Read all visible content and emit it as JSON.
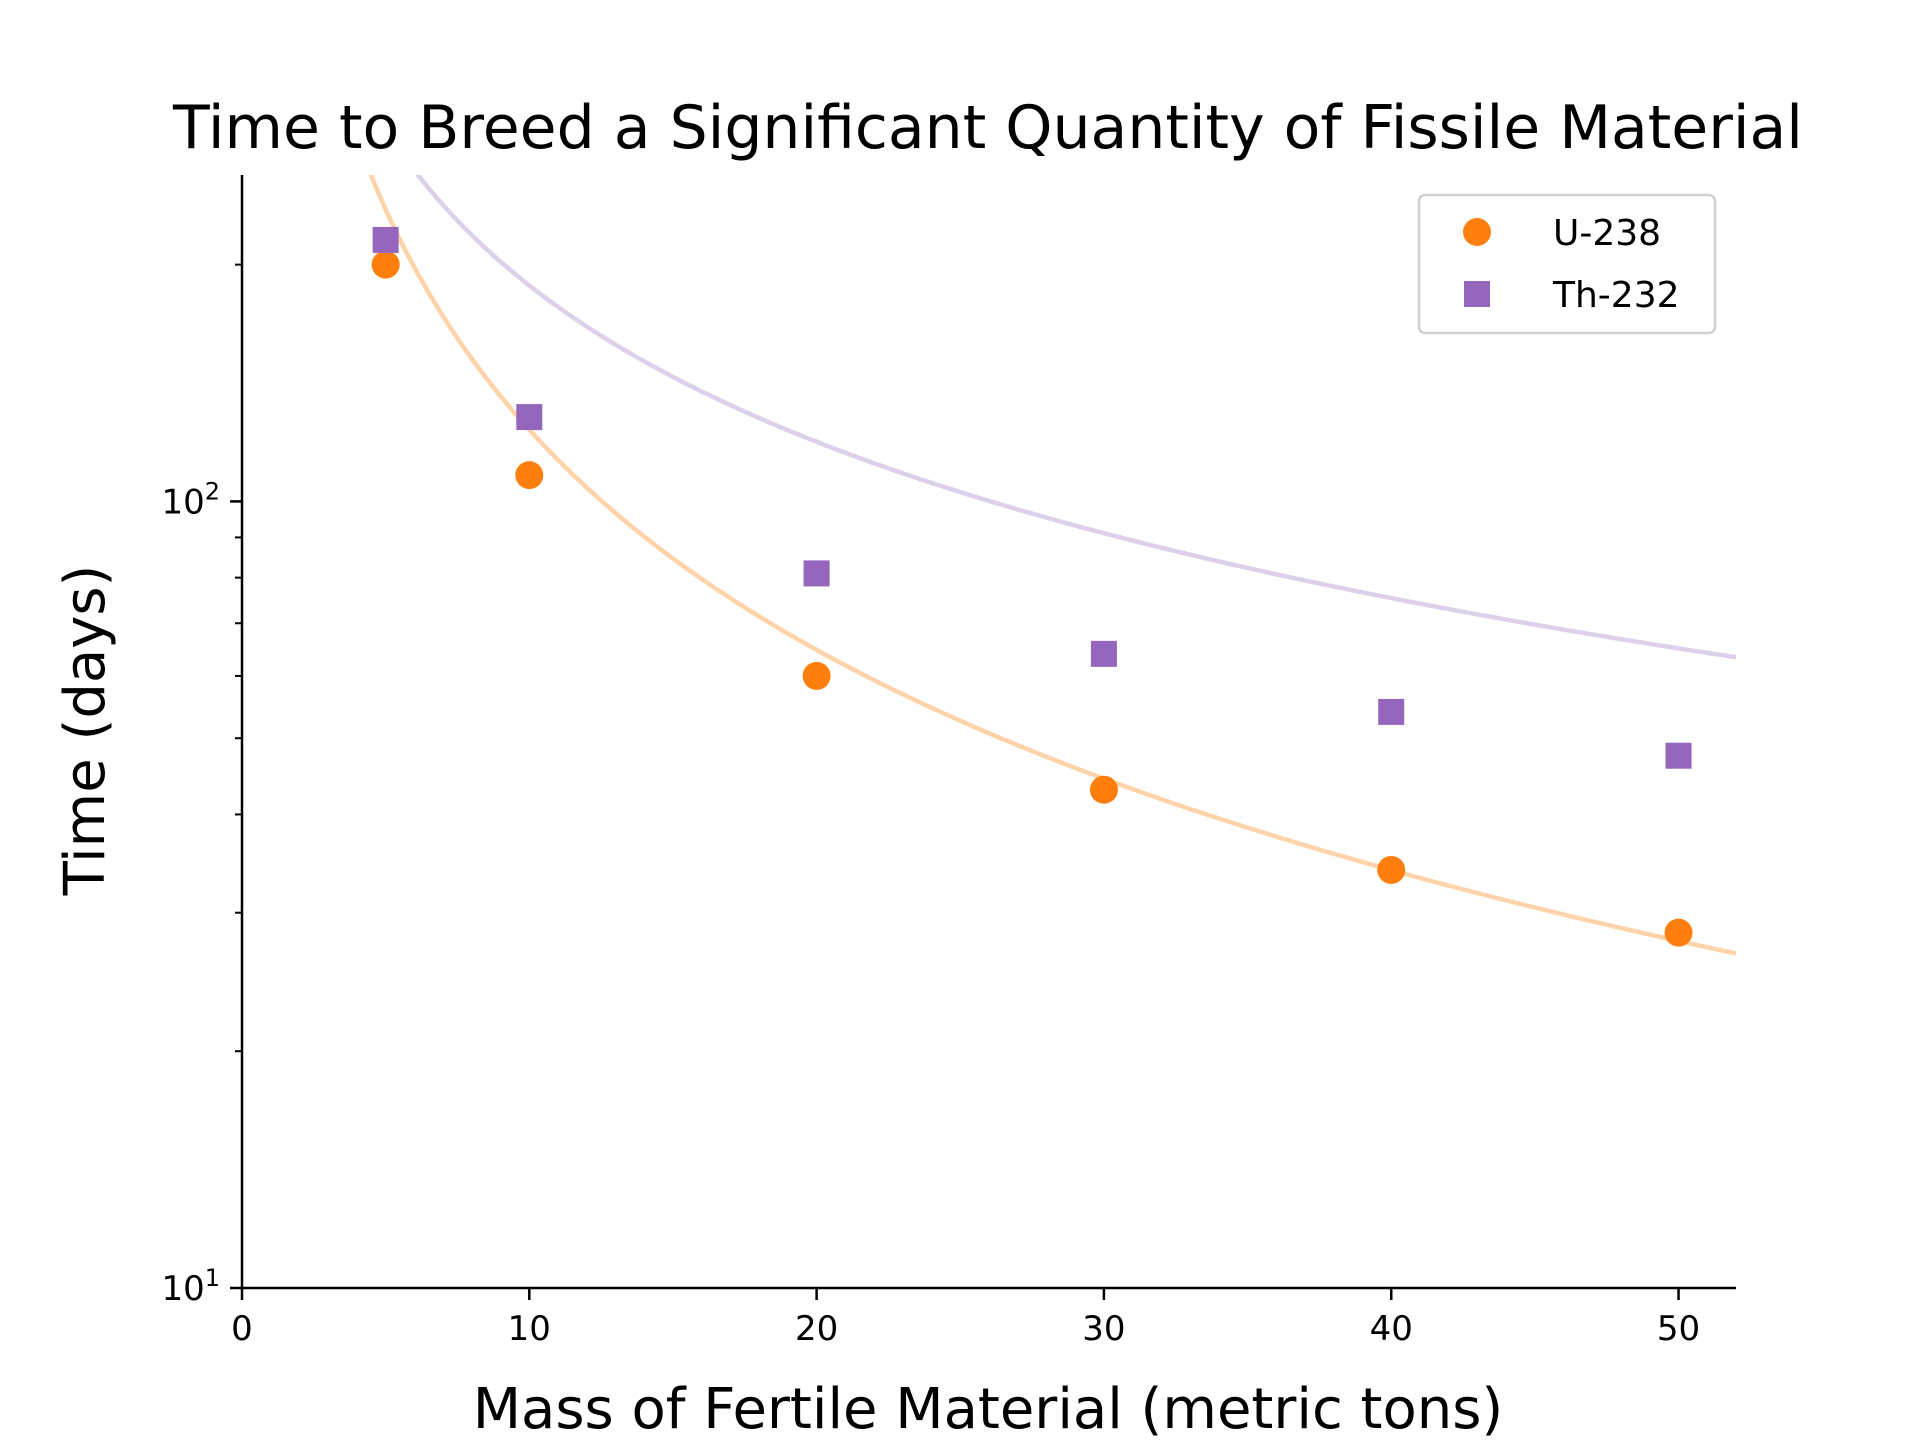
{
  "chart_data": {
    "type": "scatter",
    "title": "Time to Breed a Significant Quantity of Fissile Material",
    "xlabel": "Mass of Fertile Material (metric tons)",
    "ylabel": "Time (days)",
    "xlim": [
      0,
      52
    ],
    "ylim": [
      10,
      260
    ],
    "yscale": "log",
    "x_ticks": [
      "0",
      "10",
      "20",
      "30",
      "40",
      "50"
    ],
    "x_tick_values": [
      0,
      10,
      20,
      30,
      40,
      50
    ],
    "y_ticks": [
      {
        "base": "10",
        "exp": "1",
        "value": 10
      },
      {
        "base": "10",
        "exp": "2",
        "value": 100
      }
    ],
    "grid": false,
    "legend_position": "top-right",
    "series": [
      {
        "name": "U-238",
        "marker": "circle",
        "color": "#ff7f0e",
        "fit_color": "#ffd3aa",
        "x": [
          5,
          10,
          20,
          30,
          40,
          50
        ],
        "y": [
          200,
          108,
          60,
          43,
          34,
          28.3
        ],
        "fit": {
          "a": 1050,
          "b": 0.93
        }
      },
      {
        "name": "Th-232",
        "marker": "square",
        "color": "#9467bd",
        "fit_color": "#dcd0ea",
        "x": [
          5,
          10,
          20,
          30,
          40,
          50
        ],
        "y": [
          215,
          128,
          81,
          64,
          54,
          47.5
        ],
        "fit": {
          "a": 860,
          "b": 0.66
        }
      }
    ]
  }
}
